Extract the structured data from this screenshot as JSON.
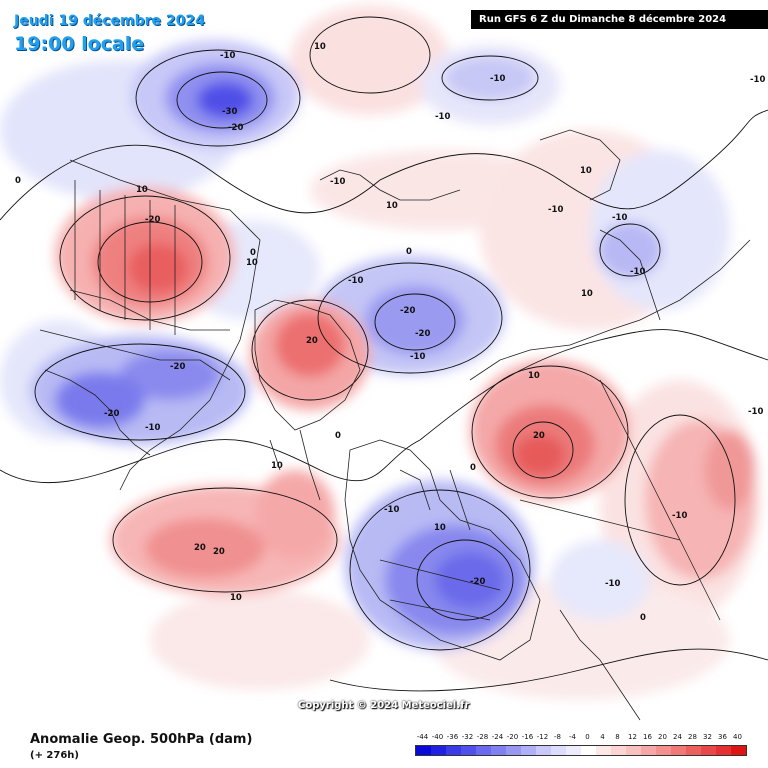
{
  "header": {
    "date": "Jeudi 19 décembre 2024",
    "time": "19:00 locale",
    "run": "Run GFS 6 Z du Dimanche 8 décembre 2024"
  },
  "footer": {
    "title": "Anomalie Geop. 500hPa (dam)",
    "lead": "(+ 276h)",
    "copyright": "Copyright © 2024 Meteociel.fr"
  },
  "legend": {
    "ticks": [
      "-44",
      "-40",
      "-36",
      "-32",
      "-28",
      "-24",
      "-20",
      "-16",
      "-12",
      "-8",
      "-4",
      "0",
      "4",
      "8",
      "12",
      "16",
      "20",
      "24",
      "28",
      "32",
      "36",
      "40"
    ],
    "colors": [
      "#0a0ad8",
      "#2020e0",
      "#3a3ae6",
      "#5050ea",
      "#6a6aee",
      "#8080f0",
      "#9898f3",
      "#b0b0f6",
      "#c8c8f9",
      "#dcdcfb",
      "#ececfd",
      "#ffffff",
      "#fde8e8",
      "#fbd4d4",
      "#f9c0c0",
      "#f6a8a8",
      "#f39090",
      "#f07878",
      "#ec6060",
      "#e84848",
      "#e43030",
      "#dd1515"
    ]
  },
  "contour_labels": [
    "-10",
    "-30",
    "-20",
    "10",
    "-10",
    "-10",
    "-20",
    "10",
    "-20",
    "-20",
    "-10",
    "-10",
    "-10",
    "-20",
    "-10",
    "10",
    "-20",
    "-10",
    "-10",
    "0",
    "10",
    "-10",
    "-10",
    "-10",
    "20",
    "10",
    "0",
    "10",
    "20",
    "10",
    "20",
    "20",
    "10",
    "-10",
    "-10",
    "-20",
    "10",
    "10",
    "-10",
    "0",
    "0",
    "0",
    "0"
  ]
}
